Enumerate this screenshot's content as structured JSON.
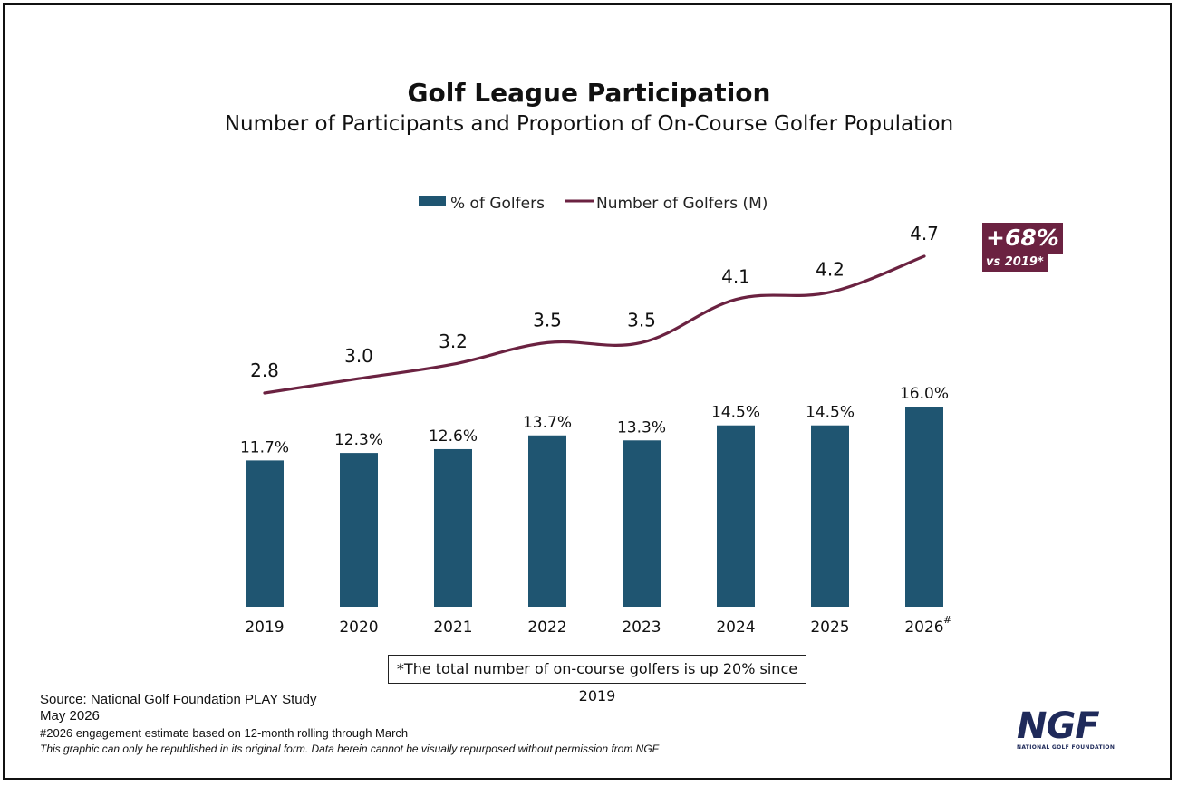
{
  "chart_data": {
    "type": "bar",
    "title": "Golf League Participation",
    "subtitle": "Number of Participants and Proportion of On-Course Golfer Population",
    "categories": [
      "2019",
      "2020",
      "2021",
      "2022",
      "2023",
      "2024",
      "2025",
      "2026"
    ],
    "category_footnote": "#",
    "series": [
      {
        "name": "% of Golfers",
        "type": "bar",
        "color": "#1f5571",
        "values": [
          11.7,
          12.3,
          12.6,
          13.7,
          13.3,
          14.5,
          14.5,
          16.0
        ],
        "labels": [
          "11.7%",
          "12.3%",
          "12.6%",
          "13.7%",
          "13.3%",
          "14.5%",
          "14.5%",
          "16.0%"
        ]
      },
      {
        "name": "Number of Golfers (M)",
        "type": "line",
        "color": "#6b2241",
        "values": [
          2.8,
          3.0,
          3.2,
          3.5,
          3.5,
          4.1,
          4.2,
          4.7
        ],
        "labels": [
          "2.8",
          "3.0",
          "3.2",
          "3.5",
          "3.5",
          "4.1",
          "4.2",
          "4.7"
        ]
      }
    ],
    "bar_ylim": [
      0,
      16.0
    ],
    "line_ylim": [
      2.8,
      4.7
    ],
    "legend_position": "top-center",
    "grid": false,
    "xlabel": "",
    "ylabel": ""
  },
  "callout": {
    "big": "+68%",
    "small": "vs 2019*",
    "color": "#6b2241"
  },
  "note": "*The total number of on-course golfers is up 20% since 2019",
  "source": {
    "line1": "Source: National Golf Foundation PLAY Study",
    "line2": "May 2026",
    "line3": "#2026 engagement estimate based on 12-month rolling through March",
    "line4": "This graphic can only be republished in its original form. Data herein cannot be visually repurposed without permission from NGF"
  },
  "logo": {
    "text": "NGF",
    "sub": "NATIONAL GOLF FOUNDATION"
  }
}
